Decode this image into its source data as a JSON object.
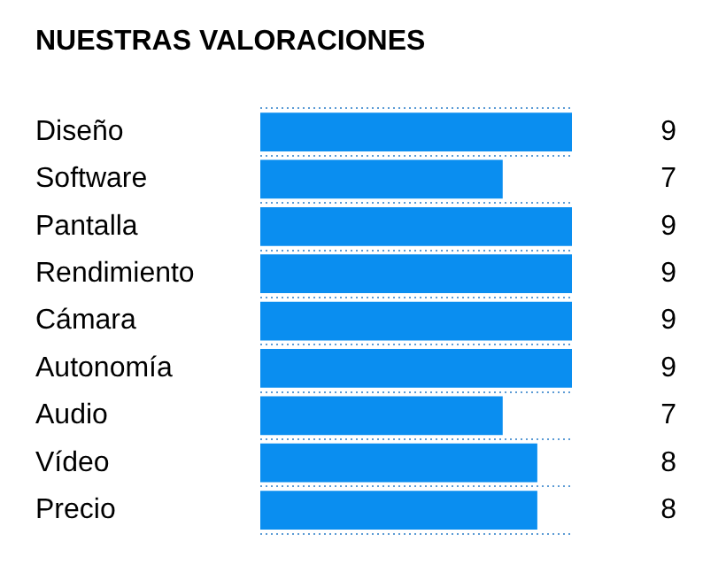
{
  "chart_data": {
    "type": "bar",
    "orientation": "horizontal",
    "title": "NUESTRAS VALORACIONES",
    "categories": [
      "Diseño",
      "Software",
      "Pantalla",
      "Rendimiento",
      "Cámara",
      "Autonomía",
      "Audio",
      "Vídeo",
      "Precio"
    ],
    "values": [
      9,
      7,
      9,
      9,
      9,
      9,
      7,
      8,
      8
    ],
    "color": "#0a8ef0",
    "data_labels": true,
    "grid": "y",
    "tick_labels": "y",
    "legend": false
  }
}
